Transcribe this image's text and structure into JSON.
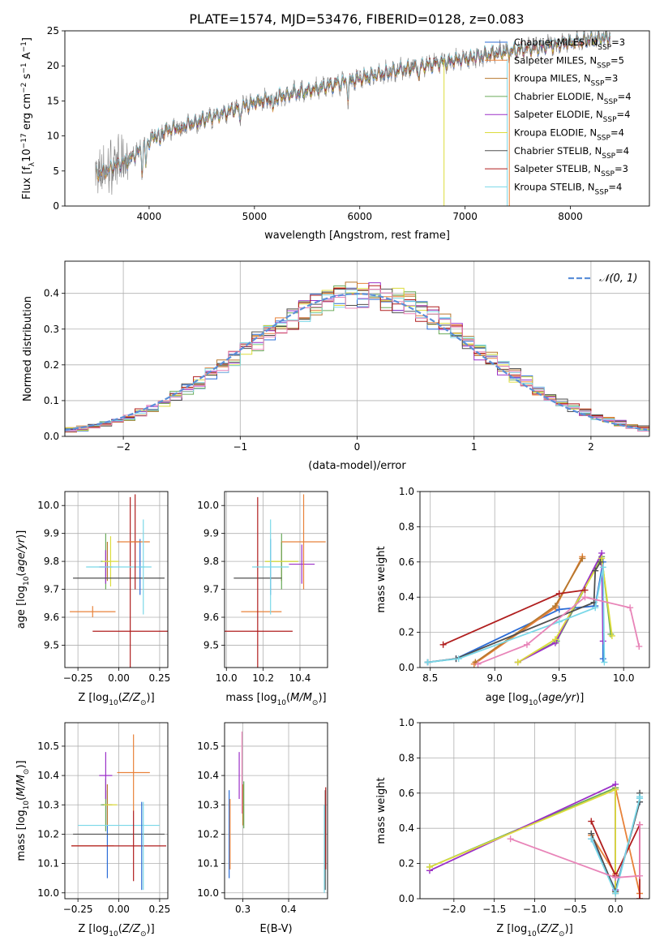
{
  "figure_title": "PLATE=1574, MJD=53476, FIBERID=0128, z=0.083",
  "models": [
    {
      "name": "Chabrier MILES",
      "nssp": "3",
      "color": "#2b6cd6"
    },
    {
      "name": "Salpeter MILES",
      "nssp": "5",
      "color": "#e8823a"
    },
    {
      "name": "Kroupa MILES",
      "nssp": "3",
      "color": "#b8782e"
    },
    {
      "name": "Chabrier ELODIE",
      "nssp": "4",
      "color": "#6aab5a"
    },
    {
      "name": "Salpeter ELODIE",
      "nssp": "4",
      "color": "#9b30c8"
    },
    {
      "name": "Kroupa ELODIE",
      "nssp": "4",
      "color": "#dcdc3c"
    },
    {
      "name": "Chabrier STELIB",
      "nssp": "4",
      "color": "#505050"
    },
    {
      "name": "Salpeter STELIB",
      "nssp": "3",
      "color": "#b01e1e"
    },
    {
      "name": "Kroupa STELIB",
      "nssp": "4",
      "color": "#7ad8e8"
    }
  ],
  "chart_data": [
    {
      "id": "spectrum",
      "type": "line",
      "xlabel": "wavelength [Angstrom, rest frame]",
      "ylabel": "Flux [f",
      "xlim": [
        3200,
        8750
      ],
      "ylim": [
        0,
        25
      ],
      "xticks": [
        4000,
        5000,
        6000,
        7000,
        8000
      ],
      "yticks": [
        0,
        5,
        10,
        15,
        20,
        25
      ],
      "data_color": "#808080",
      "continuum_anchors": [
        [
          3500,
          4.5
        ],
        [
          3800,
          6.5
        ],
        [
          3950,
          8.5
        ],
        [
          4100,
          10.5
        ],
        [
          4500,
          12.2
        ],
        [
          5000,
          14.8
        ],
        [
          5500,
          16.5
        ],
        [
          6000,
          18.2
        ],
        [
          6500,
          19.8
        ],
        [
          7000,
          21.0
        ],
        [
          7500,
          22.3
        ],
        [
          8000,
          23.3
        ],
        [
          8300,
          24.0
        ]
      ],
      "legend_position": "upper-right",
      "grid": false
    },
    {
      "id": "residuals",
      "type": "line",
      "xlabel": "(data-model)/error",
      "ylabel": "Normed distribution",
      "xlim": [
        -2.5,
        2.5
      ],
      "ylim": [
        0,
        0.49
      ],
      "xticks": [
        -2,
        -1,
        0,
        1,
        2
      ],
      "yticks": [
        0.0,
        0.1,
        0.2,
        0.3,
        0.4
      ],
      "reference_curve": {
        "label": "𝒩(0, 1)",
        "color": "#5b8fd8"
      },
      "legend_position": "upper-right",
      "grid": true
    },
    {
      "id": "age-vs-Z",
      "type": "scatter",
      "xlabel": "Z [log",
      "ylabel": "age  [log",
      "xlim": [
        -0.33,
        0.3
      ],
      "ylim": [
        9.42,
        10.05
      ],
      "xticks": [
        -0.25,
        0.0,
        0.25
      ],
      "xtick_labels": [
        "−0.25",
        "0.00",
        "0.25"
      ],
      "yticks": [
        9.5,
        9.6,
        9.7,
        9.8,
        9.9,
        10.0
      ],
      "grid": true,
      "points": [
        {
          "model": 0,
          "x": 0.13,
          "y": 9.78,
          "xerr": 0.01,
          "yerr": 0.1
        },
        {
          "model": 1,
          "x": -0.16,
          "y": 9.62,
          "xerr": 0.14,
          "yerr": 0.02
        },
        {
          "model": 2,
          "x": -0.07,
          "y": 9.8,
          "xerr": 0.01,
          "yerr": 0.07
        },
        {
          "model": 3,
          "x": -0.08,
          "y": 9.8,
          "xerr": 0.03,
          "yerr": 0.1
        },
        {
          "model": 4,
          "x": -0.08,
          "y": 9.78,
          "xerr": 0.04,
          "yerr": 0.06
        },
        {
          "model": 5,
          "x": -0.05,
          "y": 9.8,
          "xerr": 0.05,
          "yerr": 0.09
        },
        {
          "model": 6,
          "x": 0.0,
          "y": 9.74,
          "xerr": 0.28,
          "yerr": 0.0
        },
        {
          "model": 7,
          "x": 0.07,
          "y": 9.55,
          "xerr": 0.23,
          "yerr": 0.48
        },
        {
          "model": 8,
          "x": 0.0,
          "y": 9.78,
          "xerr": 0.2,
          "yerr": 0.0
        },
        {
          "model": 7,
          "x": 0.1,
          "y": 9.87,
          "xerr": 0.03,
          "yerr": 0.17
        },
        {
          "model": 1,
          "x": 0.09,
          "y": 9.87,
          "xerr": 0.1,
          "yerr": 0.0
        },
        {
          "model": 8,
          "x": 0.15,
          "y": 9.78,
          "xerr": 0.01,
          "yerr": 0.17
        }
      ]
    },
    {
      "id": "age-vs-mass",
      "type": "scatter",
      "xlabel": "mass [log",
      "ylabel": "",
      "xlim": [
        9.99,
        10.55
      ],
      "ylim": [
        9.42,
        10.05
      ],
      "xticks": [
        10.0,
        10.2,
        10.4
      ],
      "xtick_labels": [
        "10.0",
        "10.2",
        "10.4"
      ],
      "yticks": [
        9.5,
        9.6,
        9.7,
        9.8,
        9.9,
        10.0
      ],
      "grid": true,
      "points": [
        {
          "model": 0,
          "x": 10.24,
          "y": 9.78,
          "xerr": 0.0,
          "yerr": 0.1
        },
        {
          "model": 1,
          "x": 10.19,
          "y": 9.62,
          "xerr": 0.11,
          "yerr": 0.0
        },
        {
          "model": 2,
          "x": 10.3,
          "y": 9.8,
          "xerr": 0.0,
          "yerr": 0.07
        },
        {
          "model": 3,
          "x": 10.3,
          "y": 9.8,
          "xerr": 0.09,
          "yerr": 0.1
        },
        {
          "model": 4,
          "x": 10.41,
          "y": 9.79,
          "xerr": 0.07,
          "yerr": 0.07
        },
        {
          "model": 5,
          "x": 10.3,
          "y": 9.8,
          "xerr": 0.09,
          "yerr": 0.0
        },
        {
          "model": 6,
          "x": 10.17,
          "y": 9.74,
          "xerr": 0.13,
          "yerr": 0.0
        },
        {
          "model": 7,
          "x": 10.17,
          "y": 9.55,
          "xerr": 0.19,
          "yerr": 0.48
        },
        {
          "model": 8,
          "x": 10.24,
          "y": 9.78,
          "xerr": 0.1,
          "yerr": 0.0
        },
        {
          "model": 7,
          "x": 10.18,
          "y": 9.55,
          "xerr": 0.0,
          "yerr": 0.0
        },
        {
          "model": 1,
          "x": 10.42,
          "y": 9.87,
          "xerr": 0.12,
          "yerr": 0.17
        },
        {
          "model": 8,
          "x": 10.24,
          "y": 9.78,
          "xerr": 0.0,
          "yerr": 0.17
        }
      ]
    },
    {
      "id": "weight-vs-age",
      "type": "line",
      "xlabel": "age  [log",
      "ylabel": "mass weight",
      "xlim": [
        8.42,
        10.2
      ],
      "ylim": [
        0.0,
        1.0
      ],
      "xticks": [
        8.5,
        9.0,
        9.5,
        10.0
      ],
      "xtick_labels": [
        "8.5",
        "9.0",
        "9.5",
        "10.0"
      ],
      "yticks": [
        0.0,
        0.2,
        0.4,
        0.6,
        0.8,
        1.0
      ],
      "grid": true,
      "series": [
        {
          "model": 0,
          "x": [
            8.48,
            8.7,
            9.5,
            9.78,
            9.84,
            9.84
          ],
          "y": [
            0.03,
            0.05,
            0.33,
            0.35,
            0.6,
            0.05
          ]
        },
        {
          "model": 1,
          "x": [
            8.84,
            9.47,
            9.68,
            9.68
          ],
          "y": [
            0.02,
            0.34,
            0.63,
            0.62
          ]
        },
        {
          "model": 2,
          "x": [
            8.85,
            9.47,
            9.68
          ],
          "y": [
            0.03,
            0.35,
            0.62
          ]
        },
        {
          "model": 3,
          "x": [
            9.18,
            9.48,
            9.83,
            9.9
          ],
          "y": [
            0.03,
            0.15,
            0.63,
            0.19
          ]
        },
        {
          "model": 4,
          "x": [
            9.18,
            9.47,
            9.83,
            9.84
          ],
          "y": [
            0.03,
            0.14,
            0.65,
            0.15
          ]
        },
        {
          "model": 5,
          "x": [
            9.18,
            9.47,
            9.83,
            9.91
          ],
          "y": [
            0.03,
            0.16,
            0.62,
            0.18
          ]
        },
        {
          "model": 6,
          "x": [
            8.48,
            8.7,
            9.77,
            9.78,
            9.82
          ],
          "y": [
            0.03,
            0.05,
            0.37,
            0.55,
            0.6
          ]
        },
        {
          "model": 7,
          "x": [
            8.6,
            9.5,
            9.7
          ],
          "y": [
            0.13,
            0.42,
            0.44
          ]
        },
        {
          "model": 8,
          "x": [
            8.48,
            8.72,
            9.5,
            9.78,
            9.84,
            9.85
          ],
          "y": [
            0.03,
            0.05,
            0.26,
            0.34,
            0.57,
            0.03
          ]
        },
        {
          "model": 9,
          "x": [
            8.87,
            9.25,
            9.7,
            10.05,
            10.12
          ],
          "y": [
            0.02,
            0.13,
            0.4,
            0.34,
            0.12
          ]
        }
      ]
    },
    {
      "id": "mass-vs-Z",
      "type": "scatter",
      "xlabel": "Z [log",
      "ylabel": "mass [log",
      "xlim": [
        -0.33,
        0.3
      ],
      "ylim": [
        9.98,
        10.58
      ],
      "xticks": [
        -0.25,
        0.0,
        0.25
      ],
      "xtick_labels": [
        "−0.25",
        "0.00",
        "0.25"
      ],
      "yticks": [
        10.0,
        10.1,
        10.2,
        10.3,
        10.4,
        10.5
      ],
      "grid": true,
      "points": [
        {
          "model": 0,
          "x": -0.07,
          "y": 10.2,
          "xerr": 0.0,
          "yerr": 0.15
        },
        {
          "model": 1,
          "x": -0.16,
          "y": 10.16,
          "xerr": 0.13,
          "yerr": 0.0
        },
        {
          "model": 2,
          "x": -0.07,
          "y": 10.3,
          "xerr": 0.03,
          "yerr": 0.07
        },
        {
          "model": 3,
          "x": -0.08,
          "y": 10.3,
          "xerr": 0.03,
          "yerr": 0.09
        },
        {
          "model": 4,
          "x": -0.08,
          "y": 10.4,
          "xerr": 0.04,
          "yerr": 0.08
        },
        {
          "model": 5,
          "x": -0.05,
          "y": 10.3,
          "xerr": 0.04,
          "yerr": 0.0
        },
        {
          "model": 6,
          "x": 0.0,
          "y": 10.2,
          "xerr": 0.28,
          "yerr": 0.0
        },
        {
          "model": 7,
          "x": 0.0,
          "y": 10.16,
          "xerr": 0.29,
          "yerr": 0.0
        },
        {
          "model": 8,
          "x": 0.0,
          "y": 10.23,
          "xerr": 0.25,
          "yerr": 0.0
        },
        {
          "model": 7,
          "x": 0.09,
          "y": 10.16,
          "xerr": 0.0,
          "yerr": 0.12
        },
        {
          "model": 1,
          "x": 0.09,
          "y": 10.41,
          "xerr": 0.1,
          "yerr": 0.13
        },
        {
          "model": 8,
          "x": 0.15,
          "y": 10.16,
          "xerr": 0.0,
          "yerr": 0.15
        },
        {
          "model": 0,
          "x": 0.14,
          "y": 10.16,
          "xerr": 0.0,
          "yerr": 0.15
        }
      ]
    },
    {
      "id": "mass-vs-ebv",
      "type": "scatter",
      "xlabel": "E(B-V)",
      "ylabel": "",
      "xlim": [
        0.26,
        0.485
      ],
      "ylim": [
        9.98,
        10.58
      ],
      "xticks": [
        0.3,
        0.4
      ],
      "xtick_labels": [
        "0.3",
        "0.4"
      ],
      "yticks": [
        10.0,
        10.1,
        10.2,
        10.3,
        10.4,
        10.5
      ],
      "grid": true,
      "points": [
        {
          "model": 0,
          "x": 0.27,
          "y": 10.2,
          "xerr": 0.0,
          "yerr": 0.15
        },
        {
          "model": 1,
          "x": 0.272,
          "y": 10.2,
          "xerr": 0.0,
          "yerr": 0.12
        },
        {
          "model": 2,
          "x": 0.3,
          "y": 10.3,
          "xerr": 0.0,
          "yerr": 0.07
        },
        {
          "model": 3,
          "x": 0.302,
          "y": 10.3,
          "xerr": 0.0,
          "yerr": 0.08
        },
        {
          "model": 4,
          "x": 0.292,
          "y": 10.4,
          "xerr": 0.0,
          "yerr": 0.08
        },
        {
          "model": 5,
          "x": 0.301,
          "y": 10.3,
          "xerr": 0.0,
          "yerr": 0.0
        },
        {
          "model": 6,
          "x": 0.48,
          "y": 10.18,
          "xerr": 0.0,
          "yerr": 0.17
        },
        {
          "model": 7,
          "x": 0.481,
          "y": 10.22,
          "xerr": 0.0,
          "yerr": 0.14
        },
        {
          "model": 8,
          "x": 0.478,
          "y": 10.15,
          "xerr": 0.0,
          "yerr": 0.15
        },
        {
          "model": 9,
          "x": 0.298,
          "y": 10.41,
          "xerr": 0.0,
          "yerr": 0.14
        }
      ]
    },
    {
      "id": "weight-vs-Z",
      "type": "line",
      "xlabel": "Z [log",
      "ylabel": "mass weight",
      "xlim": [
        -2.42,
        0.42
      ],
      "ylim": [
        0.0,
        1.0
      ],
      "xticks": [
        -2.0,
        -1.5,
        -1.0,
        -0.5,
        0.0
      ],
      "xtick_labels": [
        "−2.0",
        "−1.5",
        "−1.0",
        "−0.5",
        "0.0"
      ],
      "yticks": [
        0.0,
        0.2,
        0.4,
        0.6,
        0.8,
        1.0
      ],
      "grid": true,
      "series": [
        {
          "model": 0,
          "x": [
            -0.3,
            0.0,
            0.3,
            0.3
          ],
          "y": [
            0.34,
            0.05,
            0.55,
            0.57
          ]
        },
        {
          "model": 1,
          "x": [
            -0.3,
            0.0,
            0.0,
            0.3
          ],
          "y": [
            0.36,
            0.14,
            0.63,
            0.03
          ]
        },
        {
          "model": 2,
          "x": [
            0.0,
            0.0
          ],
          "y": [
            0.62,
            0.03
          ]
        },
        {
          "model": 3,
          "x": [
            -2.3,
            0.0,
            0.0
          ],
          "y": [
            0.18,
            0.63,
            0.04
          ]
        },
        {
          "model": 4,
          "x": [
            -2.3,
            0.0,
            0.0
          ],
          "y": [
            0.16,
            0.65,
            0.05
          ]
        },
        {
          "model": 5,
          "x": [
            -2.3,
            0.0,
            0.0
          ],
          "y": [
            0.18,
            0.62,
            0.04
          ]
        },
        {
          "model": 6,
          "x": [
            -0.3,
            0.0,
            0.3,
            0.3
          ],
          "y": [
            0.37,
            0.04,
            0.55,
            0.6
          ]
        },
        {
          "model": 7,
          "x": [
            -0.3,
            0.0,
            0.3,
            0.3
          ],
          "y": [
            0.44,
            0.13,
            0.42,
            0.0
          ]
        },
        {
          "model": 8,
          "x": [
            -0.3,
            0.0,
            0.3,
            0.3
          ],
          "y": [
            0.34,
            0.03,
            0.57,
            0.58
          ]
        },
        {
          "model": 9,
          "x": [
            -1.3,
            0.0,
            0.3,
            0.3
          ],
          "y": [
            0.34,
            0.12,
            0.13,
            0.42
          ]
        }
      ]
    }
  ]
}
